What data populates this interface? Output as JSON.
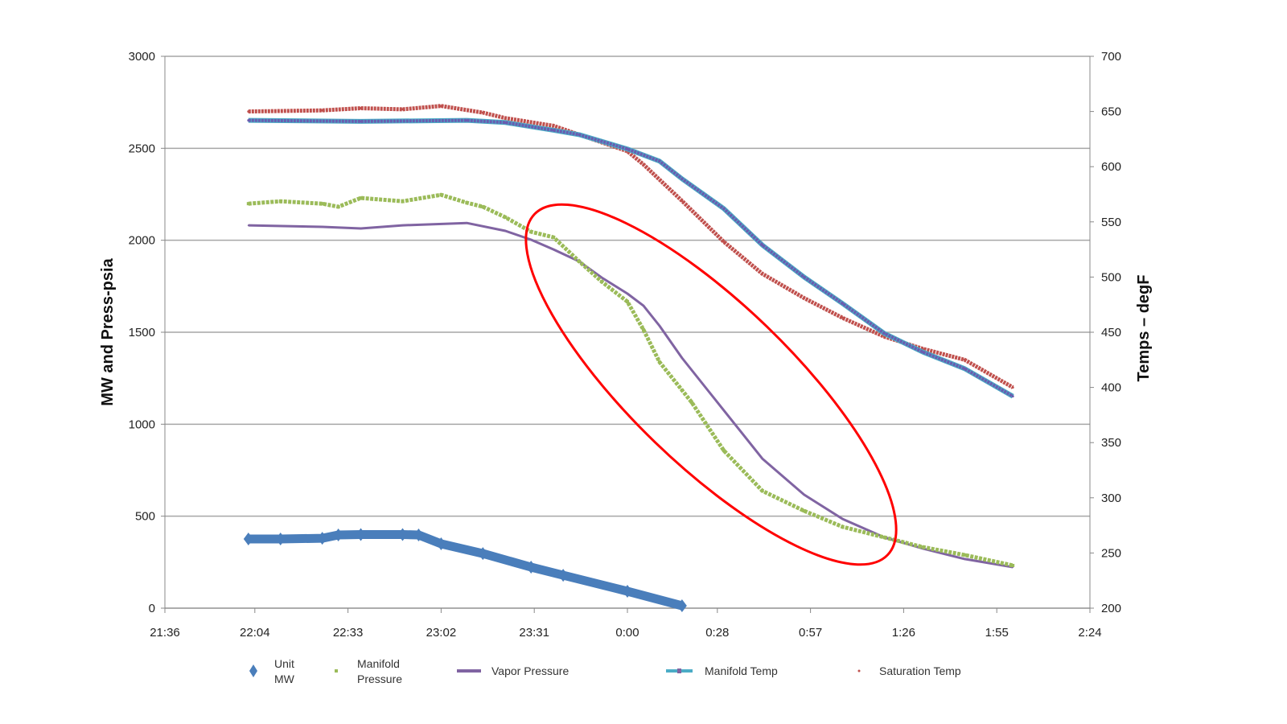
{
  "chart_data": {
    "type": "line",
    "title": "",
    "xlabel": "",
    "ylabel": "MW and Press-psia",
    "y2label": "Temps – degF",
    "xlim": [
      "21:36",
      "2:24"
    ],
    "ylim": [
      0,
      3000
    ],
    "y2lim": [
      200,
      700
    ],
    "grid": true,
    "legend_position": "bottom",
    "x_ticks": [
      "21:36",
      "22:04",
      "22:33",
      "23:02",
      "23:31",
      "0:00",
      "0:28",
      "0:57",
      "1:26",
      "1:55",
      "2:24"
    ],
    "y_ticks": [
      "0",
      "500",
      "1000",
      "1500",
      "2000",
      "2500",
      "3000"
    ],
    "y2_ticks": [
      "200",
      "250",
      "300",
      "350",
      "400",
      "450",
      "500",
      "550",
      "600",
      "650",
      "700"
    ],
    "annotation": {
      "shape": "ellipse",
      "color": "#FF0000"
    },
    "series": [
      {
        "name": "Unit MW",
        "axis": "left",
        "color": "#4A7EBB",
        "marker": "diamond",
        "x": [
          "22:02",
          "22:12",
          "22:25",
          "22:30",
          "22:37",
          "22:50",
          "22:55",
          "23:02",
          "23:15",
          "23:30",
          "23:40",
          "0:00",
          "0:17"
        ],
        "y": [
          376,
          376,
          380,
          398,
          400,
          400,
          398,
          350,
          297,
          223,
          179,
          92,
          13
        ]
      },
      {
        "name": "Manifold Pressure",
        "axis": "left",
        "color": "#9BBB59",
        "marker": "square",
        "x": [
          "22:02",
          "22:12",
          "22:25",
          "22:30",
          "22:37",
          "22:50",
          "23:02",
          "23:10",
          "23:15",
          "23:22",
          "23:30",
          "23:37",
          "23:45",
          "23:52",
          "0:00",
          "0:05",
          "0:10",
          "0:17",
          "0:20",
          "0:30",
          "0:42",
          "0:55",
          "1:07",
          "1:20",
          "1:32",
          "1:45",
          "2:00"
        ],
        "y": [
          2199,
          2212,
          2199,
          2182,
          2230,
          2212,
          2247,
          2204,
          2182,
          2125,
          2046,
          2016,
          1885,
          1775,
          1666,
          1513,
          1338,
          1185,
          1119,
          857,
          638,
          529,
          442,
          385,
          332,
          289,
          232
        ]
      },
      {
        "name": "Vapor Pressure",
        "axis": "left",
        "color": "#8064A2",
        "marker": "line",
        "x": [
          "22:02",
          "22:25",
          "22:37",
          "22:50",
          "23:10",
          "23:22",
          "23:30",
          "23:37",
          "23:45",
          "23:52",
          "0:00",
          "0:05",
          "0:10",
          "0:17",
          "0:25",
          "0:35",
          "0:42",
          "0:55",
          "1:07",
          "1:20",
          "1:32",
          "1:45",
          "2:00"
        ],
        "y": [
          2081,
          2073,
          2064,
          2081,
          2094,
          2051,
          2003,
          1950,
          1885,
          1797,
          1710,
          1644,
          1535,
          1360,
          1185,
          966,
          813,
          617,
          485,
          385,
          324,
          267,
          223
        ]
      },
      {
        "name": "Manifold Temp",
        "axis": "right",
        "color": "#4BACC6",
        "marker": "line-with-marker",
        "x": [
          "22:02",
          "22:37",
          "23:10",
          "23:22",
          "23:37",
          "23:45",
          "0:00",
          "0:10",
          "0:17",
          "0:30",
          "0:42",
          "0:55",
          "1:07",
          "1:20",
          "1:32",
          "1:45",
          "2:00"
        ],
        "y": [
          642,
          641,
          642,
          640,
          633,
          629,
          616,
          605,
          589,
          562,
          529,
          500,
          476,
          449,
          432,
          417,
          392
        ]
      },
      {
        "name": "Saturation Temp",
        "axis": "right",
        "color": "#C0504D",
        "marker": "dot",
        "x": [
          "22:02",
          "22:25",
          "22:37",
          "22:50",
          "23:02",
          "23:15",
          "23:22",
          "23:37",
          "23:45",
          "0:00",
          "0:05",
          "0:17",
          "0:30",
          "0:42",
          "0:55",
          "1:07",
          "1:20",
          "1:32",
          "1:45",
          "2:00"
        ],
        "y": [
          650,
          651,
          653,
          652,
          655,
          649,
          644,
          637,
          629,
          614,
          602,
          569,
          532,
          503,
          481,
          463,
          446,
          435,
          425,
          400
        ]
      }
    ]
  }
}
